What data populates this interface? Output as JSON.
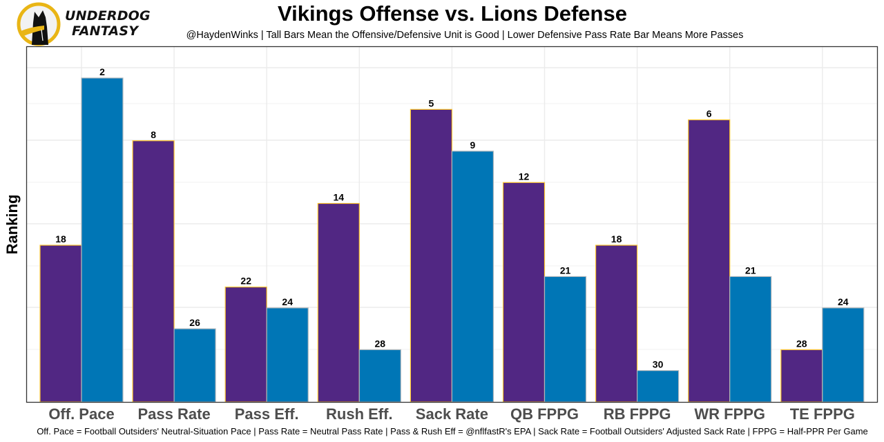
{
  "branding": {
    "logo_icon": "underdog-dog-logo-icon",
    "line1": "UNDERDOG",
    "line2": "FANTASY"
  },
  "colors": {
    "offense_fill": "#512783",
    "offense_border": "#FFC62F",
    "defense_fill": "#0076B6",
    "defense_border": "#B0B7BC",
    "grid": "#ebebeb",
    "panel_border": "#333333"
  },
  "chart_data": {
    "type": "bar",
    "title": "Vikings Offense vs. Lions Defense",
    "subtitle": "@HaydenWinks | Tall Bars Mean the Offensive/Defensive Unit is Good | Lower Defensive Pass Rate Bar Means More Passes",
    "caption": "Off. Pace = Football Outsiders' Neutral-Situation Pace | Pass Rate = Neutral Pass Rate | Pass & Rush Eff = @nflfastR's EPA | Sack Rate = Football Outsiders' Adjusted Sack Rate | FPPG = Half-PPR Per Game",
    "xlabel": "",
    "ylabel": "Ranking",
    "y_axis_reversed": true,
    "ylim": [
      33,
      1
    ],
    "grid": true,
    "legend": "none",
    "categories": [
      "Off. Pace",
      "Pass Rate",
      "Pass Eff.",
      "Rush Eff.",
      "Sack Rate",
      "QB FPPG",
      "RB FPPG",
      "WR FPPG",
      "TE FPPG"
    ],
    "series": [
      {
        "name": "Vikings Offense",
        "values": [
          18,
          8,
          22,
          14,
          5,
          12,
          18,
          6,
          28
        ]
      },
      {
        "name": "Lions Defense",
        "values": [
          2,
          26,
          24,
          28,
          9,
          21,
          30,
          21,
          24
        ]
      }
    ]
  }
}
